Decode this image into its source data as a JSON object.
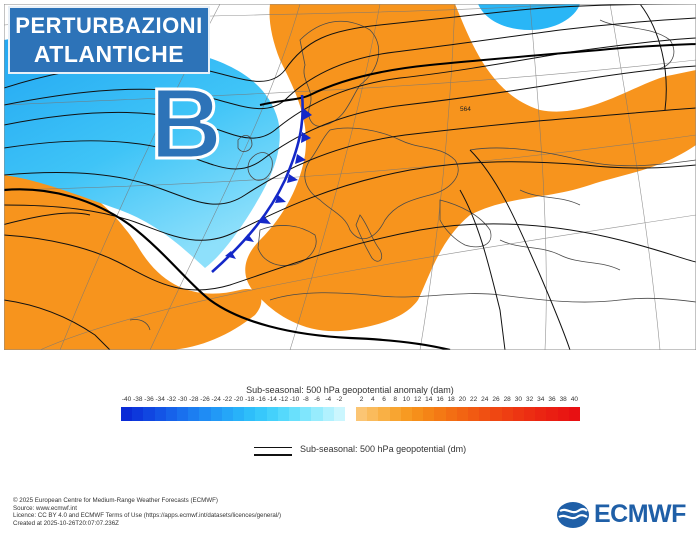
{
  "header": {
    "title_line1": "PERTURBAZIONI",
    "title_line2": "ATLANTICHE"
  },
  "map": {
    "pressure_symbol": "B",
    "contour_label": "564",
    "colors": {
      "low_anomaly": "#29b6f6",
      "high_anomaly": "#f7941d",
      "front": "#1428c8",
      "land_border": "#555555"
    }
  },
  "anomaly_legend": {
    "title": "Sub-seasonal: 500 hPa geopotential anomaly (dam)",
    "negative_ticks": [
      "-40",
      "-38",
      "-36",
      "-34",
      "-32",
      "-30",
      "-28",
      "-26",
      "-24",
      "-22",
      "-20",
      "-18",
      "-16",
      "-14",
      "-12",
      "-10",
      "-8",
      "-6",
      "-4",
      "-2"
    ],
    "positive_ticks": [
      "2",
      "4",
      "6",
      "8",
      "10",
      "12",
      "14",
      "16",
      "18",
      "20",
      "22",
      "24",
      "26",
      "28",
      "30",
      "32",
      "34",
      "36",
      "38",
      "40"
    ],
    "negative_colors": [
      "#0a2bd6",
      "#0d38dc",
      "#1046e1",
      "#1354e6",
      "#1662ea",
      "#1970ee",
      "#1c7ef1",
      "#1f8cf4",
      "#2299f6",
      "#25a6f8",
      "#28b2f9",
      "#2ebefa",
      "#37c8fb",
      "#44d1fb",
      "#55d9fc",
      "#69e0fc",
      "#7fe6fd",
      "#97ecfd",
      "#b1f1fe",
      "#cbf6fe"
    ],
    "positive_colors": [
      "#fbc574",
      "#fabb5c",
      "#f9b045",
      "#f8a531",
      "#f79a22",
      "#f68f1a",
      "#f58416",
      "#f47914",
      "#f36e13",
      "#f26412",
      "#f15a12",
      "#f05012",
      "#ef4712",
      "#ee3e12",
      "#ed3512",
      "#ec2d12",
      "#eb2512",
      "#ea1e12",
      "#e91712",
      "#e81012"
    ]
  },
  "geopotential_legend": {
    "label": "Sub-seasonal: 500 hPa geopotential (dm)"
  },
  "footer": {
    "lines": [
      "© 2025 European Centre for Medium-Range Weather Forecasts (ECMWF)",
      "Source: www.ecmwf.int",
      "Licence: CC BY 4.0 and ECMWF Terms of Use (https://apps.ecmwf.int/datasets/licences/general/)",
      "Created at 2025-10-26T20:07:07.236Z"
    ]
  },
  "logo": {
    "text": "ECMWF"
  }
}
